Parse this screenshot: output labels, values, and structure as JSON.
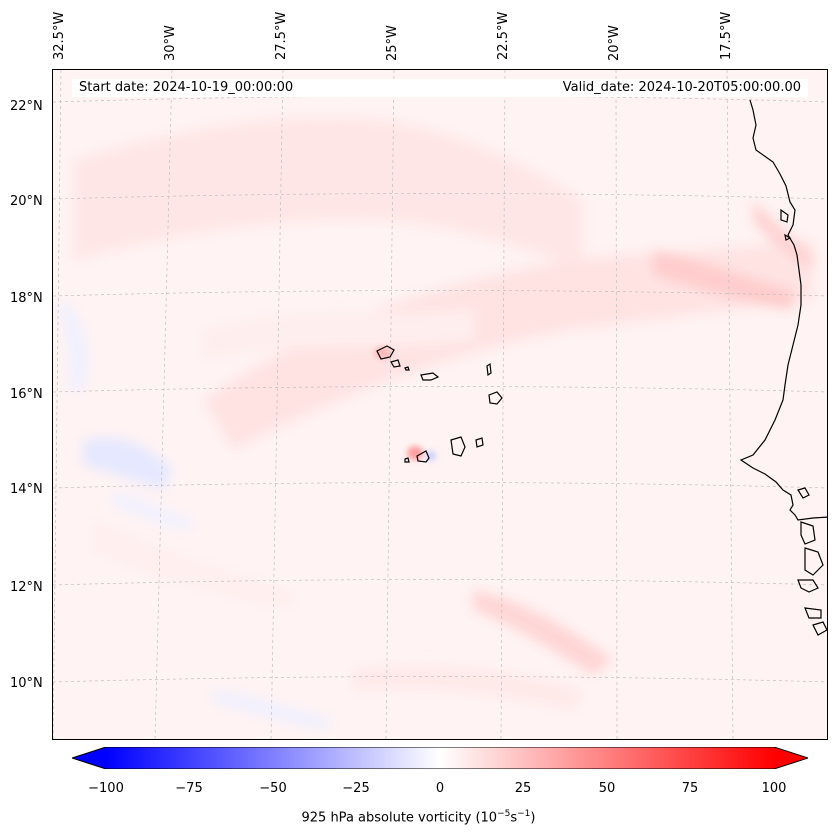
{
  "map": {
    "header": {
      "start_date": "Start date: 2024-10-19_00:00:00",
      "valid_date": "Valid_date: 2024-10-20T05:00:00.00"
    },
    "lon_labels": [
      "32.5°W",
      "30°W",
      "27.5°W",
      "25°W",
      "22.5°W",
      "20°W",
      "17.5°W"
    ],
    "lat_labels": [
      "22°N",
      "20°N",
      "18°N",
      "16°N",
      "14°N",
      "12°N",
      "10°N"
    ],
    "grid": true,
    "coastline_color": "#000000"
  },
  "colorbar": {
    "ticks": [
      "−100",
      "−75",
      "−50",
      "−25",
      "0",
      "25",
      "50",
      "75",
      "100"
    ],
    "label_main": "925 hPa absolute vorticity (10",
    "label_exp1": "−5",
    "label_mid": "s",
    "label_exp2": "−1",
    "label_end": ")",
    "min_color": "#0000ff",
    "mid_color": "#ffffff",
    "max_color": "#ff0000"
  }
}
